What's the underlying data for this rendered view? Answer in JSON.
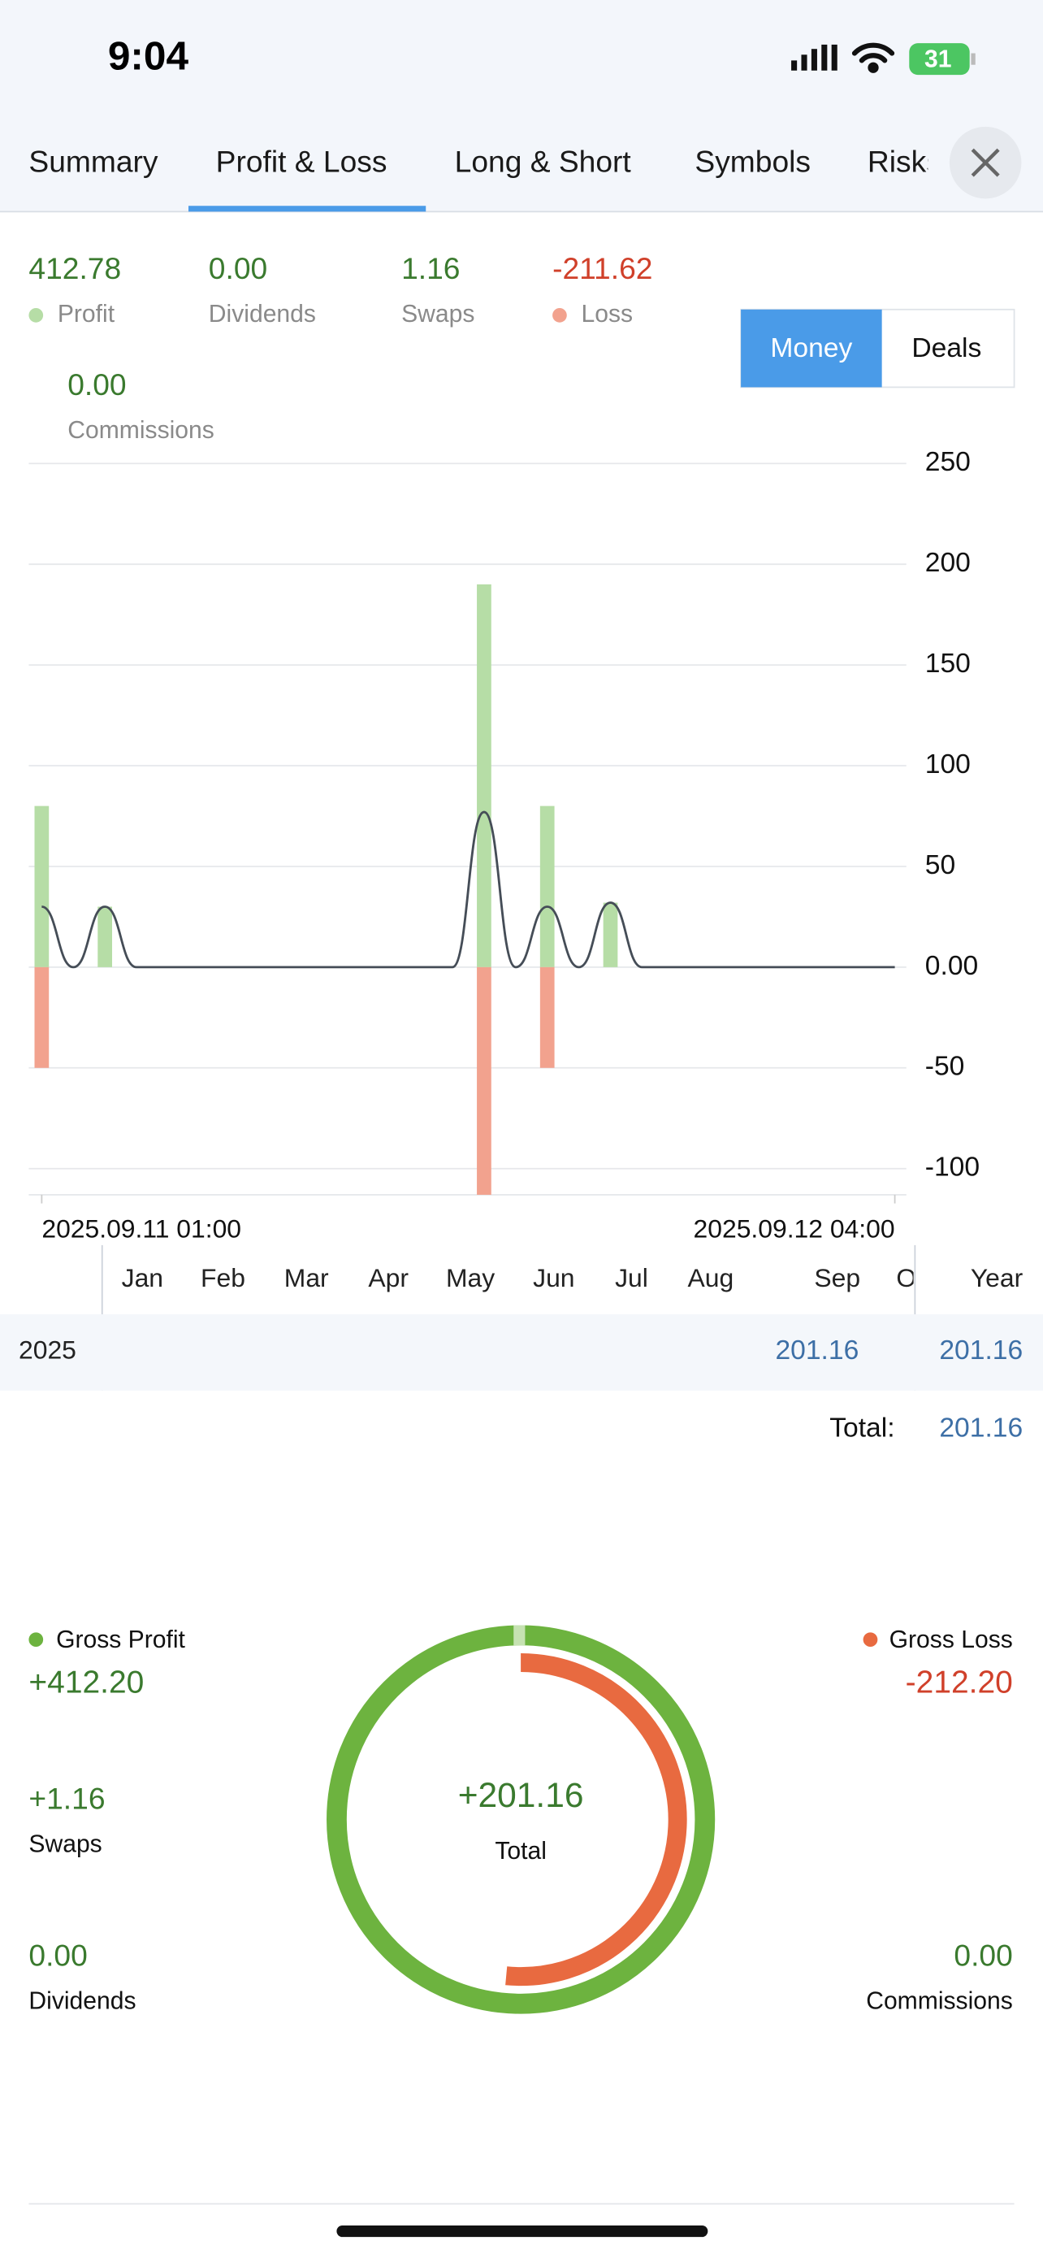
{
  "status_bar": {
    "time": "9:04",
    "battery": "31"
  },
  "tabs": [
    "Summary",
    "Profit & Loss",
    "Long & Short",
    "Symbols",
    "Risks"
  ],
  "summary": [
    {
      "value": "412.78",
      "label": "Profit"
    },
    {
      "value": "0.00",
      "label": "Dividends"
    },
    {
      "value": "1.16",
      "label": "Swaps"
    },
    {
      "value": "-211.62",
      "label": "Loss"
    },
    {
      "value": "0.00",
      "label": "Commissions"
    }
  ],
  "toggle": [
    "Money",
    "Deals"
  ],
  "monthly_table": {
    "columns": [
      "Jan",
      "Feb",
      "Mar",
      "Apr",
      "May",
      "Jun",
      "Jul",
      "Aug",
      "Sep",
      "O",
      "Year"
    ],
    "rows": [
      {
        "year": "2025",
        "sep": "201.16",
        "total": "201.16"
      }
    ],
    "total_label": "Total:",
    "total_value": "201.16"
  },
  "donut_side": {
    "swaps_value": "+1.16",
    "swaps_label": "Swaps",
    "dividends_value": "0.00",
    "dividends_label": "Dividends",
    "commissions_value": "0.00",
    "commissions_label": "Commissions"
  },
  "chart_data": [
    {
      "type": "bar",
      "x": [
        "2025.09.11 01:00",
        "2025.09.11 03:00",
        "2025.09.11 15:00",
        "2025.09.11 17:00",
        "2025.09.11 19:00"
      ],
      "series": [
        {
          "color": "#b6dda6",
          "values": [
            80,
            30,
            190,
            80,
            32
          ]
        },
        {
          "color": "#f2a28e",
          "values": [
            -50,
            null,
            -113,
            -50,
            null
          ]
        }
      ],
      "line": {
        "color": "#454d57",
        "x": [
          "2025.09.11 01:00",
          "2025.09.11 02:00",
          "2025.09.11 03:00",
          "2025.09.11 04:00",
          "2025.09.11 14:00",
          "2025.09.11 15:00",
          "2025.09.11 16:00",
          "2025.09.11 17:00",
          "2025.09.11 18:00",
          "2025.09.11 19:00",
          "2025.09.11 20:00",
          "2025.09.12 04:00"
        ],
        "values": [
          30,
          0,
          30,
          0,
          0,
          77,
          0,
          30,
          0,
          32,
          0,
          0
        ]
      },
      "xlim": [
        "2025.09.11 01:00",
        "2025.09.12 04:00"
      ],
      "xticks": [
        "2025.09.11 01:00",
        "2025.09.12 04:00"
      ],
      "ylim": [
        -113,
        250
      ],
      "yticks": [
        250,
        200,
        150,
        100,
        50,
        {
          "value": 0,
          "label": "0.00"
        },
        -50,
        -100
      ],
      "grid": true
    },
    {
      "type": "donut",
      "categories": [
        "Gross Profit",
        "Gross Loss"
      ],
      "values": [
        412.2,
        -212.2
      ],
      "value_labels": [
        "+412.20",
        "-212.20"
      ],
      "colors": [
        "#6db33f",
        "#e86a40"
      ],
      "center_value": "+201.16",
      "center_label": "Total"
    }
  ]
}
